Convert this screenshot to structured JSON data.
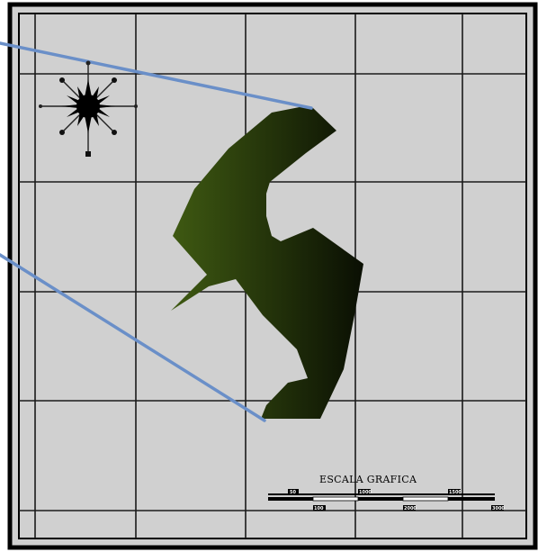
{
  "map": {
    "frame_color": "#000000",
    "background_color": "#d0d0d0",
    "grid_color": "#1a1a1a",
    "leader_line_color": "#6a8fc8",
    "parcel_fill_light": "#3f5a12",
    "parcel_fill_dark": "#0a0f03",
    "north_arrow_icon": "compass-rose-icon"
  },
  "scale_bar": {
    "title": "ESCALA GRAFICA",
    "upper_labels": [
      "50",
      "1000",
      "1500"
    ],
    "lower_labels": [
      "100",
      "2000",
      "3000"
    ]
  }
}
